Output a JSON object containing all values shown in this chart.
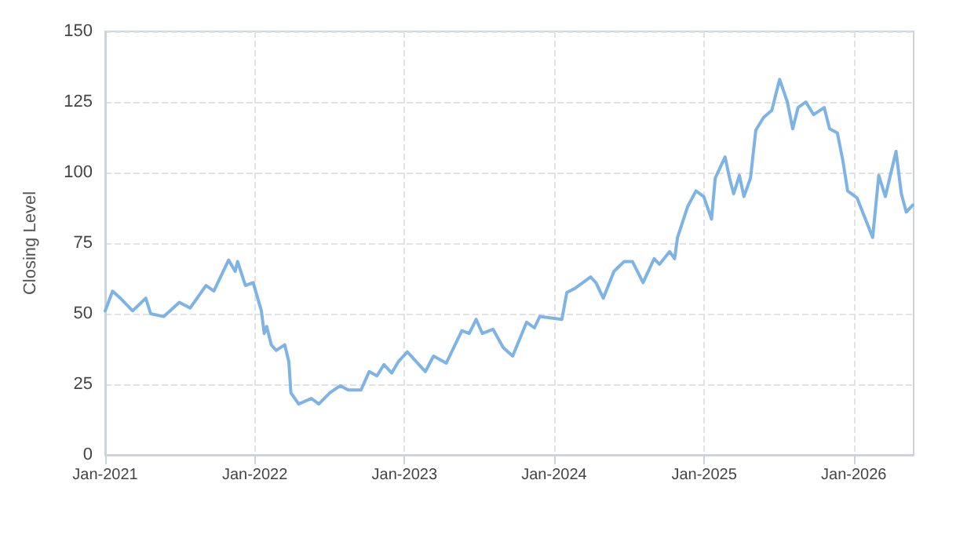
{
  "chart_data": {
    "type": "line",
    "ylabel": "Closing Level",
    "x": [
      "2021-01-01",
      "2021-01-19",
      "2021-02-07",
      "2021-03-09",
      "2021-04-10",
      "2021-04-22",
      "2021-05-24",
      "2021-07-01",
      "2021-07-27",
      "2021-09-04",
      "2021-09-23",
      "2021-10-29",
      "2021-11-14",
      "2021-11-20",
      "2021-12-09",
      "2021-12-28",
      "2022-01-17",
      "2022-01-24",
      "2022-01-30",
      "2022-02-10",
      "2022-02-22",
      "2022-03-15",
      "2022-03-25",
      "2022-03-30",
      "2022-04-18",
      "2022-05-19",
      "2022-06-06",
      "2022-07-03",
      "2022-07-28",
      "2022-08-17",
      "2022-09-17",
      "2022-10-07",
      "2022-10-26",
      "2022-11-12",
      "2022-12-01",
      "2022-12-17",
      "2023-01-08",
      "2023-02-21",
      "2023-03-13",
      "2023-04-13",
      "2023-05-21",
      "2023-06-08",
      "2023-06-25",
      "2023-07-10",
      "2023-08-05",
      "2023-08-30",
      "2023-09-22",
      "2023-10-26",
      "2023-11-14",
      "2023-11-27",
      "2024-01-20",
      "2024-02-01",
      "2024-02-21",
      "2024-03-30",
      "2024-04-12",
      "2024-04-30",
      "2024-05-26",
      "2024-06-20",
      "2024-07-10",
      "2024-08-05",
      "2024-09-01",
      "2024-09-14",
      "2024-10-09",
      "2024-10-21",
      "2024-10-28",
      "2024-11-22",
      "2024-12-12",
      "2024-12-31",
      "2025-01-19",
      "2025-01-28",
      "2025-02-21",
      "2025-03-04",
      "2025-03-14",
      "2025-03-28",
      "2025-04-08",
      "2025-04-24",
      "2025-05-07",
      "2025-05-26",
      "2025-06-15",
      "2025-07-04",
      "2025-07-23",
      "2025-08-05",
      "2025-08-18",
      "2025-09-06",
      "2025-09-25",
      "2025-10-21",
      "2025-11-03",
      "2025-11-22",
      "2025-12-05",
      "2025-12-17",
      "2026-01-09",
      "2026-01-28",
      "2026-02-16",
      "2026-03-03",
      "2026-03-19",
      "2026-04-14",
      "2026-04-27",
      "2026-05-09",
      "2026-05-25"
    ],
    "series": [
      {
        "color": "#7eb3e5",
        "values": [
          51,
          58,
          55.5,
          51,
          55.5,
          50,
          49,
          54,
          52,
          60,
          58,
          69,
          65,
          68.5,
          60,
          61,
          51,
          43,
          45.5,
          39,
          37,
          39,
          33,
          22,
          18,
          20,
          18,
          22,
          24.5,
          23,
          23,
          29.5,
          28,
          32,
          29,
          33,
          36.5,
          29.5,
          35,
          32.5,
          44,
          43,
          48,
          43,
          44.5,
          38,
          35,
          47,
          45,
          49,
          48,
          57.5,
          59,
          63,
          61,
          55.5,
          65,
          68.5,
          68.5,
          61,
          69.5,
          67.5,
          72,
          69.5,
          77,
          88,
          93.5,
          91.5,
          83.5,
          98,
          105.5,
          98,
          92.5,
          99,
          91.5,
          98,
          115,
          119.5,
          122,
          133,
          125,
          115.5,
          123,
          125,
          120.5,
          123,
          115.5,
          114,
          104.5,
          93.5,
          91,
          84,
          77,
          99,
          91.5,
          107.5,
          92.5,
          86,
          88.5
        ]
      }
    ],
    "xlim": [
      "2021-01-01",
      "2026-05-27"
    ],
    "xticks": [
      {
        "value": "2021-01-01",
        "label": "Jan-2021"
      },
      {
        "value": "2022-01-01",
        "label": "Jan-2022"
      },
      {
        "value": "2023-01-01",
        "label": "Jan-2023"
      },
      {
        "value": "2024-01-01",
        "label": "Jan-2024"
      },
      {
        "value": "2025-01-01",
        "label": "Jan-2025"
      },
      {
        "value": "2026-01-01",
        "label": "Jan-2026"
      }
    ],
    "ylim": [
      0,
      150
    ],
    "yticks": [
      0,
      25,
      50,
      75,
      100,
      125,
      150
    ],
    "grid": true,
    "line_style": "solid",
    "marker": "none"
  }
}
